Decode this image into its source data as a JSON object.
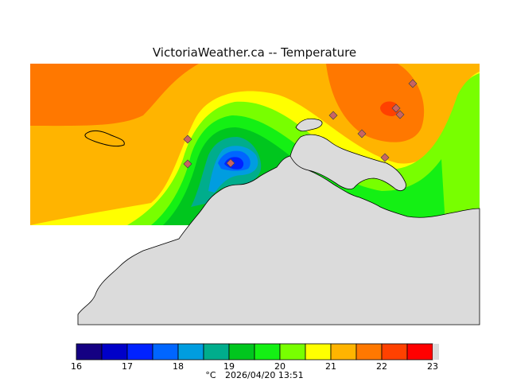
{
  "title": "VictoriaWeather.ca  --  Temperature",
  "colorbar": {
    "unit": "°C",
    "ticks": [
      "16",
      "17",
      "18",
      "19",
      "20",
      "21",
      "22",
      "23"
    ],
    "colors": [
      "#140082",
      "#0000c8",
      "#0022ff",
      "#0066ff",
      "#009de0",
      "#00ad8c",
      "#00c61e",
      "#14f014",
      "#78ff00",
      "#ffff00",
      "#ffb400",
      "#ff7800",
      "#ff4100",
      "#ff0000"
    ]
  },
  "timestamp": "2026/04/20 13:51",
  "land_color": "#dbdbdb",
  "station_marker_color": "#c86464"
}
